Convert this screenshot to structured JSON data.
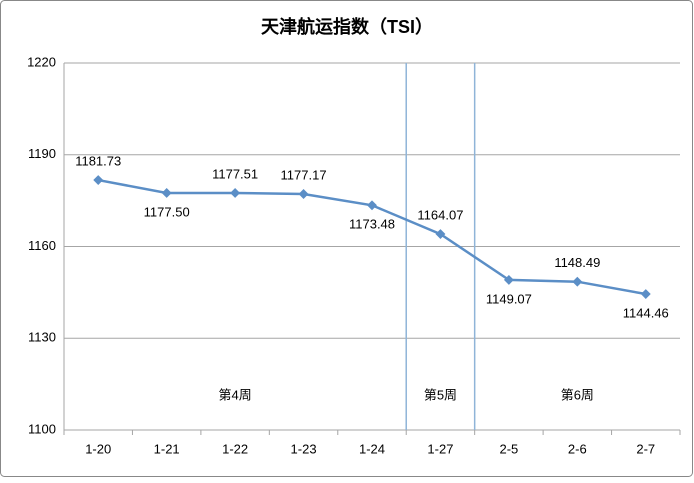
{
  "chart_data": {
    "type": "line",
    "title": "天津航运指数（TSI）",
    "categories": [
      "1-20",
      "1-21",
      "1-22",
      "1-23",
      "1-24",
      "1-27",
      "2-5",
      "2-6",
      "2-7"
    ],
    "series": [
      {
        "name": "TSI",
        "color": "#5b8ec6",
        "values": [
          1181.73,
          1177.5,
          1177.51,
          1177.17,
          1173.48,
          1164.07,
          1149.07,
          1148.49,
          1144.46
        ],
        "value_labels": [
          "1181.73",
          "1177.50",
          "1177.51",
          "1177.17",
          "1173.48",
          "1164.07",
          "1149.07",
          "1148.49",
          "1144.46"
        ]
      }
    ],
    "ylim": [
      1100,
      1220
    ],
    "yticks": [
      1100,
      1130,
      1160,
      1190,
      1220
    ],
    "grid": true,
    "annotations": [
      "第4周",
      "第5周",
      "第6周"
    ]
  }
}
